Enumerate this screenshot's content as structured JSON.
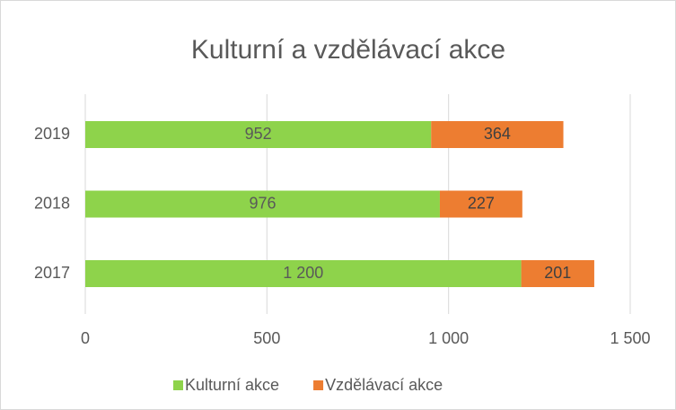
{
  "chart_data": {
    "type": "stacked_bar_horizontal",
    "title": "Kulturní a vzdělávací akce",
    "categories": [
      "2019",
      "2018",
      "2017"
    ],
    "series": [
      {
        "name": "Kulturní akce",
        "color": "#8ed34b",
        "values": [
          952,
          976,
          1200
        ],
        "value_labels": [
          "952",
          "976",
          "1 200"
        ]
      },
      {
        "name": "Vzdělávací akce",
        "color": "#ed7d31",
        "values": [
          364,
          227,
          201
        ]
      }
    ],
    "xlim": [
      0,
      1500
    ],
    "xticks": [
      0,
      500,
      {
        "value": 1000,
        "label": "1 000"
      },
      {
        "value": 1500,
        "label": "1 500"
      }
    ],
    "grid": true,
    "legend": "bottom"
  }
}
